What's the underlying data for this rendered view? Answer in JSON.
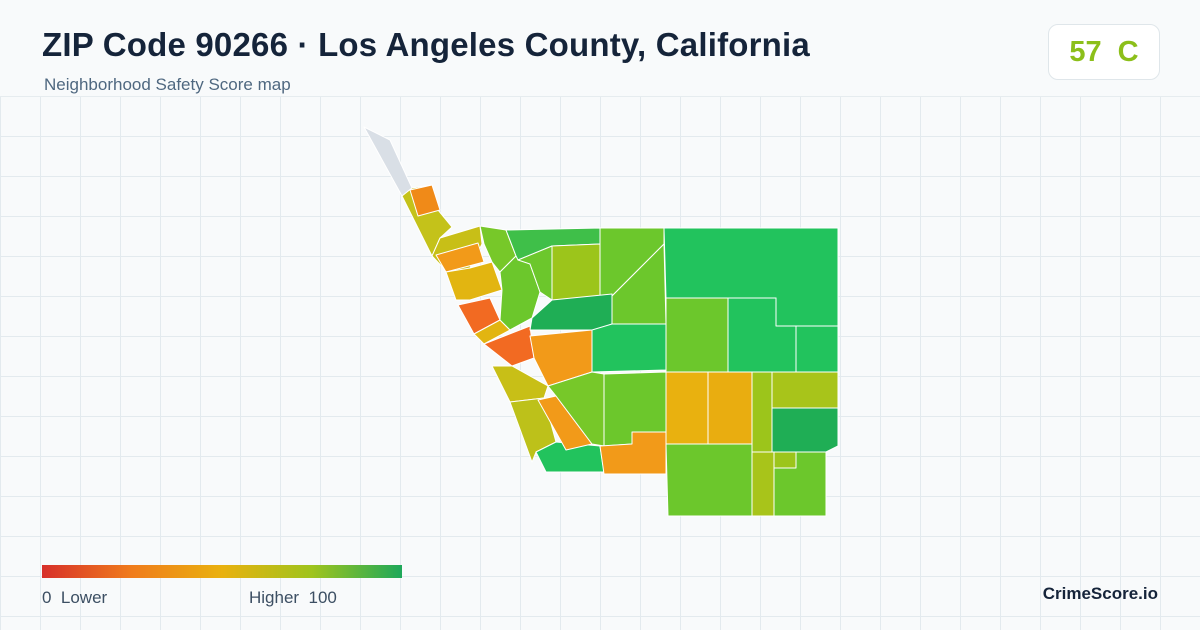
{
  "header": {
    "title": "ZIP Code 90266 · Los Angeles County, California",
    "subtitle": "Neighborhood Safety Score map"
  },
  "score": {
    "value": "57",
    "grade": "C",
    "color": "#8cbf1a"
  },
  "legend": {
    "low_label": "0  Lower",
    "high_label": "Higher  100",
    "colors": [
      "#d7302a",
      "#f07c1c",
      "#e9b10f",
      "#9fc41d",
      "#1ea85a"
    ]
  },
  "brand": "CrimeScore.io"
}
